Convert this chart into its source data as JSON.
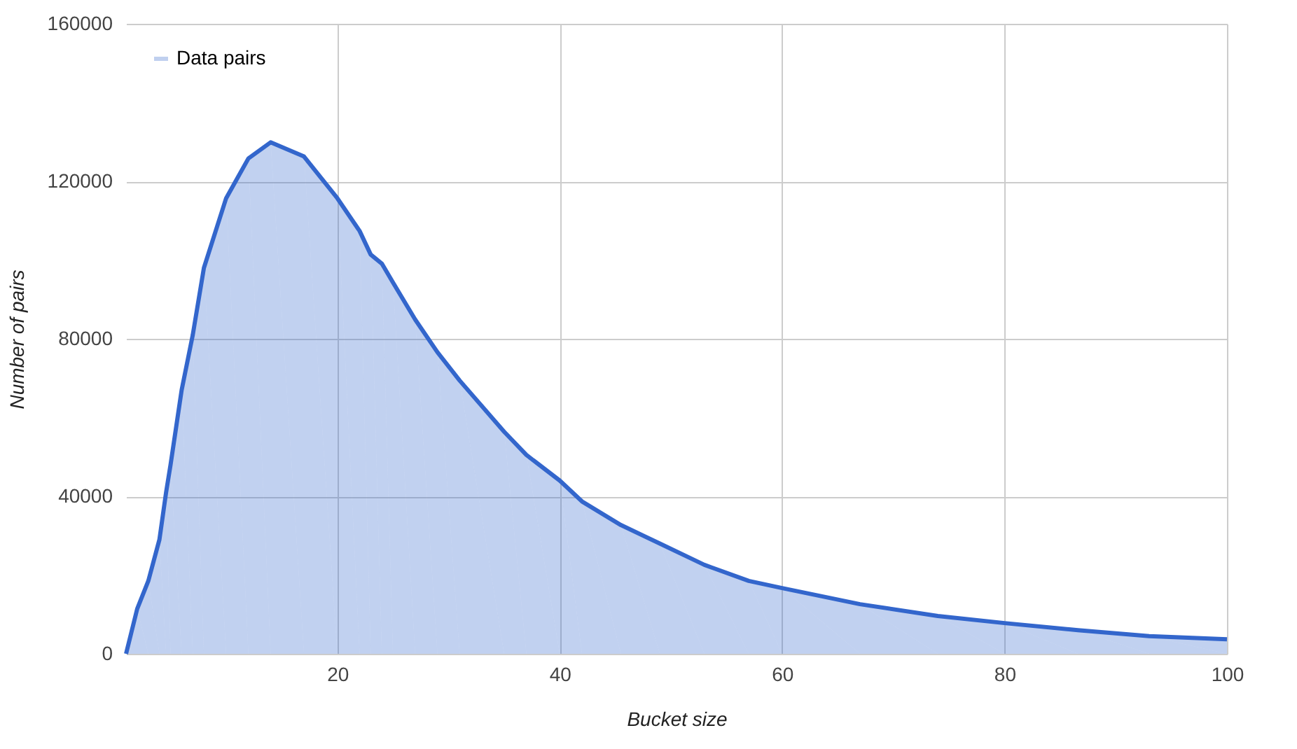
{
  "chart_data": {
    "type": "area",
    "xlabel": "Bucket size",
    "ylabel": "Number of pairs",
    "series": [
      {
        "name": "Data pairs",
        "color": "#3366cc",
        "x": [
          1,
          2,
          3,
          4,
          4.6,
          5,
          6,
          7,
          8,
          10,
          12,
          14,
          17,
          20,
          22,
          23,
          24,
          25,
          27,
          29,
          31,
          35,
          37,
          40,
          42,
          45.5,
          49,
          53,
          57,
          60,
          67,
          74,
          80,
          86.6,
          93,
          100
        ],
        "values": [
          0,
          11400,
          18500,
          29000,
          41000,
          48000,
          67000,
          81000,
          98000,
          115700,
          125800,
          129900,
          126300,
          115700,
          107400,
          101400,
          99100,
          94300,
          84900,
          76600,
          69400,
          56400,
          50500,
          44000,
          38700,
          32700,
          28000,
          22600,
          18500,
          16700,
          12600,
          9600,
          7800,
          6000,
          4500,
          3700
        ]
      }
    ],
    "xlim": [
      1,
      100
    ],
    "xticks": [
      20,
      40,
      60,
      80,
      100
    ],
    "ylim": [
      0,
      160000
    ],
    "yticks": [
      0,
      40000,
      80000,
      120000,
      160000
    ],
    "grid": true,
    "legend": "top left"
  }
}
